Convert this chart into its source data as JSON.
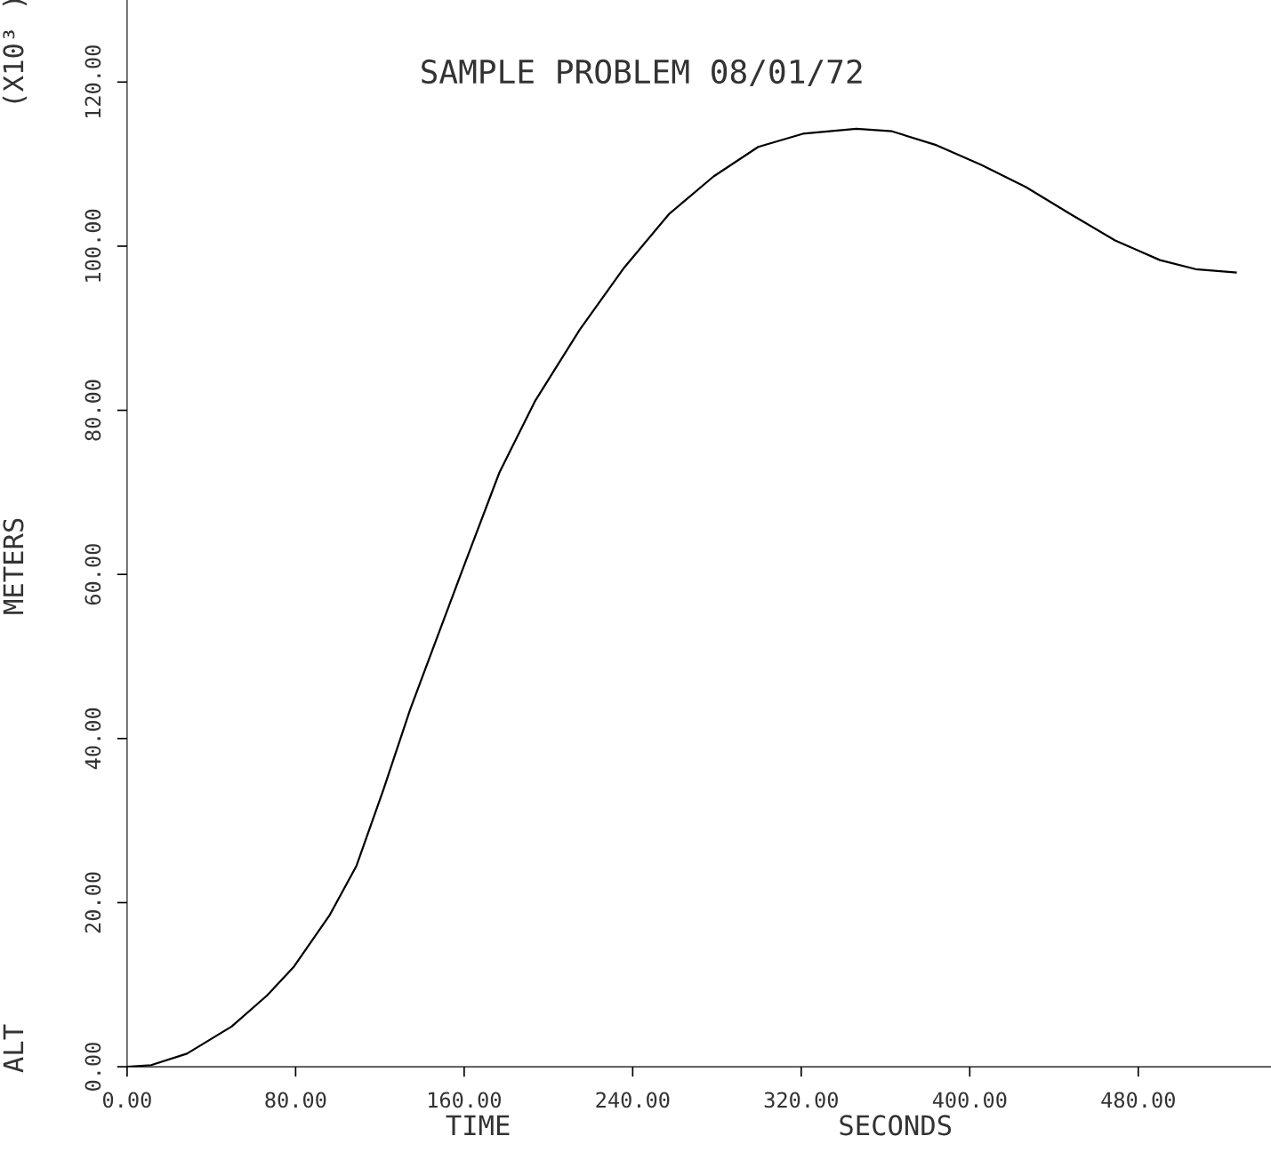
{
  "chart_data": {
    "type": "line",
    "title": "SAMPLE PROBLEM 08/01/72",
    "xlabel": "TIME                    SECONDS",
    "ylabel": "ALT                         METERS                         (X10³ )",
    "x": [
      0,
      11.4,
      28.4,
      49.6,
      66.5,
      79.2,
      96.2,
      108.9,
      121.6,
      134.3,
      147,
      159.7,
      176.7,
      193.6,
      214.8,
      236,
      257.2,
      278.4,
      299.6,
      320.8,
      346.2,
      363.1,
      384.3,
      405.5,
      426.7,
      447.9,
      469,
      490.3,
      507.2,
      526.3
    ],
    "series": [
      {
        "color": "#000000",
        "values": [
          0,
          0.2,
          1.6,
          4.9,
          8.7,
          12.2,
          18.5,
          24.5,
          33.7,
          43.5,
          52.2,
          60.9,
          72.4,
          81.1,
          89.8,
          97.4,
          103.9,
          108.5,
          112.1,
          113.7,
          114.3,
          114,
          112.3,
          109.9,
          107.2,
          103.9,
          100.7,
          98.3,
          97.2,
          96.8
        ]
      }
    ],
    "xlim": [
      0,
      543
    ],
    "ylim": [
      0,
      130
    ],
    "xticks": [
      {
        "value": 0,
        "label": "0.00"
      },
      {
        "value": 80,
        "label": "80.00"
      },
      {
        "value": 160,
        "label": "160.00"
      },
      {
        "value": 240,
        "label": "240.00"
      },
      {
        "value": 320,
        "label": "320.00"
      },
      {
        "value": 400,
        "label": "400.00"
      },
      {
        "value": 480,
        "label": "480.00"
      }
    ],
    "yticks": [
      {
        "value": 0,
        "label": "0.00"
      },
      {
        "value": 20,
        "label": "20.00"
      },
      {
        "value": 40,
        "label": "40.00"
      },
      {
        "value": 60,
        "label": "60.00"
      },
      {
        "value": 80,
        "label": "80.00"
      },
      {
        "value": 100,
        "label": "100.00"
      },
      {
        "value": 120,
        "label": "120.00"
      }
    ],
    "grid": false,
    "legend": false,
    "marker": "none",
    "line_style": "solid"
  }
}
